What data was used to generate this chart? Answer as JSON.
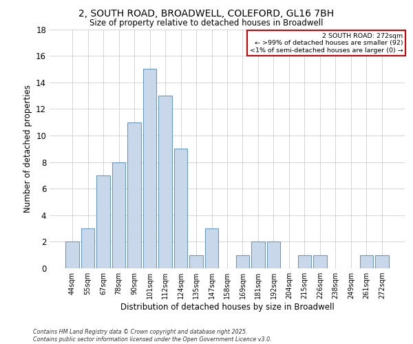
{
  "title": "2, SOUTH ROAD, BROADWELL, COLEFORD, GL16 7BH",
  "subtitle": "Size of property relative to detached houses in Broadwell",
  "xlabel": "Distribution of detached houses by size in Broadwell",
  "ylabel": "Number of detached properties",
  "bar_color": "#c8d8ea",
  "bar_edge_color": "#6699bb",
  "categories": [
    "44sqm",
    "55sqm",
    "67sqm",
    "78sqm",
    "90sqm",
    "101sqm",
    "112sqm",
    "124sqm",
    "135sqm",
    "147sqm",
    "158sqm",
    "169sqm",
    "181sqm",
    "192sqm",
    "204sqm",
    "215sqm",
    "226sqm",
    "238sqm",
    "249sqm",
    "261sqm",
    "272sqm"
  ],
  "values": [
    2,
    3,
    7,
    8,
    11,
    15,
    13,
    9,
    1,
    3,
    0,
    1,
    2,
    2,
    0,
    1,
    1,
    0,
    0,
    1,
    1
  ],
  "ylim": [
    0,
    18
  ],
  "yticks": [
    0,
    2,
    4,
    6,
    8,
    10,
    12,
    14,
    16,
    18
  ],
  "annotation_title": "2 SOUTH ROAD: 272sqm",
  "annotation_line1": "← >99% of detached houses are smaller (92)",
  "annotation_line2": "<1% of semi-detached houses are larger (0) →",
  "annotation_box_color": "#ffffff",
  "annotation_border_color": "#cc0000",
  "footer1": "Contains HM Land Registry data © Crown copyright and database right 2025.",
  "footer2": "Contains public sector information licensed under the Open Government Licence v3.0.",
  "background_color": "#ffffff",
  "grid_color": "#cccccc"
}
